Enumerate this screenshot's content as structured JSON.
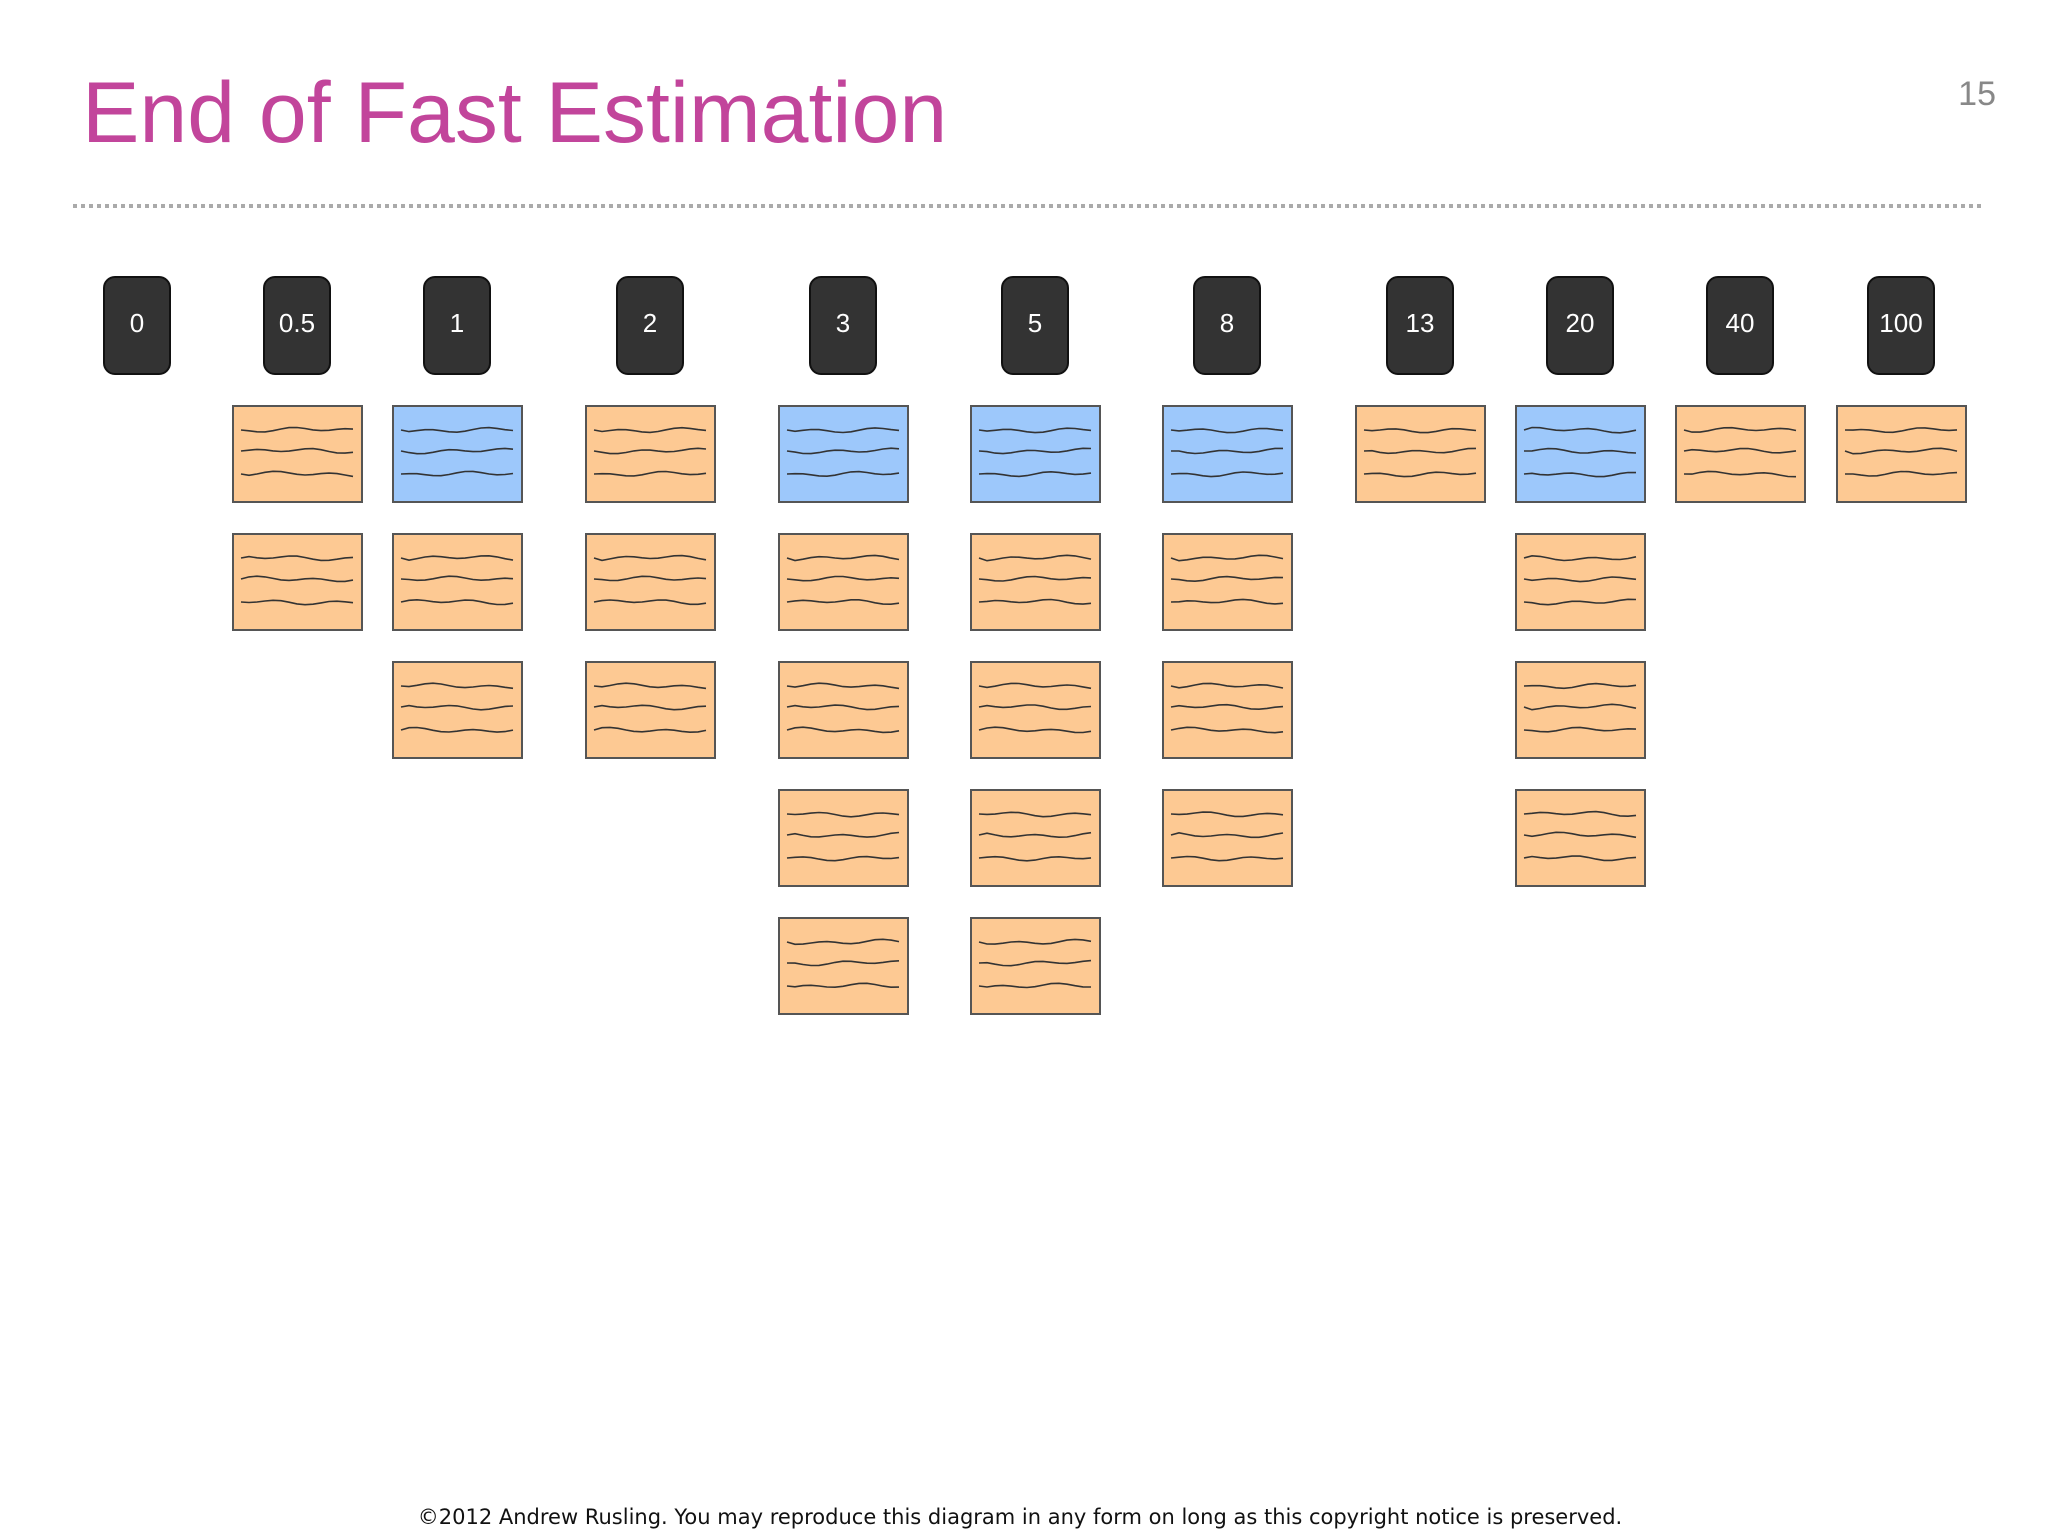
{
  "header": {
    "title": "End of Fast Estimation",
    "page_number": "15"
  },
  "columns": [
    {
      "label": "0",
      "notes": []
    },
    {
      "label": "0.5",
      "notes": [
        "orange",
        "orange"
      ]
    },
    {
      "label": "1",
      "notes": [
        "blue",
        "orange",
        "orange"
      ]
    },
    {
      "label": "2",
      "notes": [
        "orange",
        "orange",
        "orange"
      ]
    },
    {
      "label": "3",
      "notes": [
        "blue",
        "orange",
        "orange",
        "orange",
        "orange"
      ]
    },
    {
      "label": "5",
      "notes": [
        "blue",
        "orange",
        "orange",
        "orange",
        "orange"
      ]
    },
    {
      "label": "8",
      "notes": [
        "blue",
        "orange",
        "orange",
        "orange"
      ]
    },
    {
      "label": "13",
      "notes": [
        "orange"
      ]
    },
    {
      "label": "20",
      "notes": [
        "blue",
        "orange",
        "orange",
        "orange"
      ]
    },
    {
      "label": "40",
      "notes": [
        "orange"
      ]
    },
    {
      "label": "100",
      "notes": [
        "orange"
      ]
    }
  ],
  "footer": "©2012 Andrew Rusling. You may reproduce this diagram in any form on long as this copyright notice is preserved."
}
